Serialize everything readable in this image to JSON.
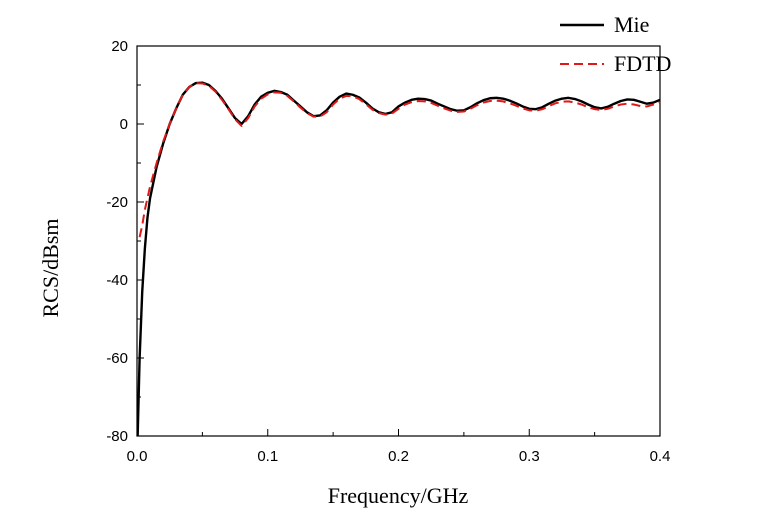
{
  "chart_data": {
    "type": "line",
    "title": "",
    "xlabel": "Frequency/GHz",
    "ylabel": "RCS/dBsm",
    "xlim": [
      0.0,
      0.4
    ],
    "ylim": [
      -80,
      20
    ],
    "xticks": [
      0.0,
      0.1,
      0.2,
      0.3,
      0.4
    ],
    "xtick_labels": [
      "0.0",
      "0.1",
      "0.2",
      "0.3",
      "0.4"
    ],
    "yticks": [
      20,
      0,
      -20,
      -40,
      -60,
      -80
    ],
    "ytick_labels": [
      "20",
      "0",
      "-20",
      "-40",
      "-60",
      "-80"
    ],
    "grid": false,
    "legend_position": "top-right",
    "series": [
      {
        "name": "Mie",
        "color": "#000000",
        "dash": "solid",
        "x": [
          0.0005,
          0.002,
          0.004,
          0.006,
          0.008,
          0.01,
          0.015,
          0.02,
          0.025,
          0.03,
          0.035,
          0.04,
          0.045,
          0.05,
          0.055,
          0.06,
          0.065,
          0.07,
          0.075,
          0.08,
          0.085,
          0.09,
          0.095,
          0.1,
          0.105,
          0.11,
          0.115,
          0.12,
          0.125,
          0.13,
          0.135,
          0.14,
          0.145,
          0.15,
          0.155,
          0.16,
          0.165,
          0.17,
          0.175,
          0.18,
          0.185,
          0.19,
          0.195,
          0.2,
          0.205,
          0.21,
          0.215,
          0.22,
          0.225,
          0.23,
          0.235,
          0.24,
          0.245,
          0.25,
          0.255,
          0.26,
          0.265,
          0.27,
          0.275,
          0.28,
          0.285,
          0.29,
          0.295,
          0.3,
          0.305,
          0.31,
          0.315,
          0.32,
          0.325,
          0.33,
          0.335,
          0.34,
          0.345,
          0.35,
          0.355,
          0.36,
          0.365,
          0.37,
          0.375,
          0.38,
          0.385,
          0.39,
          0.395,
          0.4
        ],
        "y": [
          -80,
          -60,
          -43,
          -32,
          -24,
          -19,
          -11,
          -5,
          0,
          4,
          7.5,
          9.5,
          10.5,
          10.6,
          10,
          8.5,
          6.5,
          4,
          1.5,
          0,
          2,
          5,
          7,
          8,
          8.5,
          8.2,
          7.5,
          6,
          4.5,
          3,
          2,
          2.2,
          3.5,
          5.5,
          7,
          7.8,
          7.5,
          6.8,
          5.5,
          4,
          3,
          2.6,
          3,
          4.5,
          5.5,
          6.2,
          6.5,
          6.4,
          6,
          5.2,
          4.5,
          3.8,
          3.4,
          3.5,
          4.3,
          5.3,
          6.1,
          6.6,
          6.7,
          6.5,
          6,
          5.3,
          4.5,
          3.9,
          3.8,
          4.3,
          5.2,
          6,
          6.5,
          6.7,
          6.4,
          5.8,
          5,
          4.3,
          4,
          4.4,
          5.2,
          5.9,
          6.3,
          6.2,
          5.7,
          5.2,
          5.5,
          6.2
        ]
      },
      {
        "name": "FDTD",
        "color": "#e01818",
        "dash": "dashed",
        "x": [
          0.002,
          0.004,
          0.006,
          0.008,
          0.01,
          0.015,
          0.02,
          0.025,
          0.03,
          0.035,
          0.04,
          0.045,
          0.05,
          0.055,
          0.06,
          0.065,
          0.07,
          0.075,
          0.08,
          0.085,
          0.09,
          0.095,
          0.1,
          0.105,
          0.11,
          0.115,
          0.12,
          0.125,
          0.13,
          0.135,
          0.14,
          0.145,
          0.15,
          0.155,
          0.16,
          0.165,
          0.17,
          0.175,
          0.18,
          0.185,
          0.19,
          0.195,
          0.2,
          0.205,
          0.21,
          0.215,
          0.22,
          0.225,
          0.23,
          0.235,
          0.24,
          0.245,
          0.25,
          0.255,
          0.26,
          0.265,
          0.27,
          0.275,
          0.28,
          0.285,
          0.29,
          0.295,
          0.3,
          0.305,
          0.31,
          0.315,
          0.32,
          0.325,
          0.33,
          0.335,
          0.34,
          0.345,
          0.35,
          0.355,
          0.36,
          0.365,
          0.37,
          0.375,
          0.38,
          0.385,
          0.39,
          0.395,
          0.4
        ],
        "y": [
          -29,
          -26,
          -22,
          -19,
          -16,
          -10,
          -4.5,
          0,
          4,
          7.5,
          9.5,
          10.5,
          10.4,
          9.8,
          8.3,
          6.2,
          3.8,
          1.2,
          -0.5,
          1.5,
          4.5,
          6.5,
          7.6,
          8.1,
          8,
          7.2,
          5.8,
          4.2,
          2.8,
          1.9,
          1.9,
          3,
          5,
          6.5,
          7.2,
          7.1,
          6.4,
          5.1,
          3.7,
          2.8,
          2.4,
          2.7,
          3.9,
          5,
          5.6,
          5.9,
          5.8,
          5.4,
          4.7,
          4,
          3.4,
          3.1,
          3.2,
          3.9,
          4.8,
          5.5,
          5.9,
          6,
          5.8,
          5.3,
          4.7,
          4,
          3.5,
          3.4,
          3.8,
          4.6,
          5.3,
          5.7,
          5.8,
          5.5,
          5,
          4.3,
          3.8,
          3.6,
          3.9,
          4.5,
          5,
          5.2,
          5,
          4.6,
          4.5,
          5,
          5.6
        ]
      }
    ]
  }
}
